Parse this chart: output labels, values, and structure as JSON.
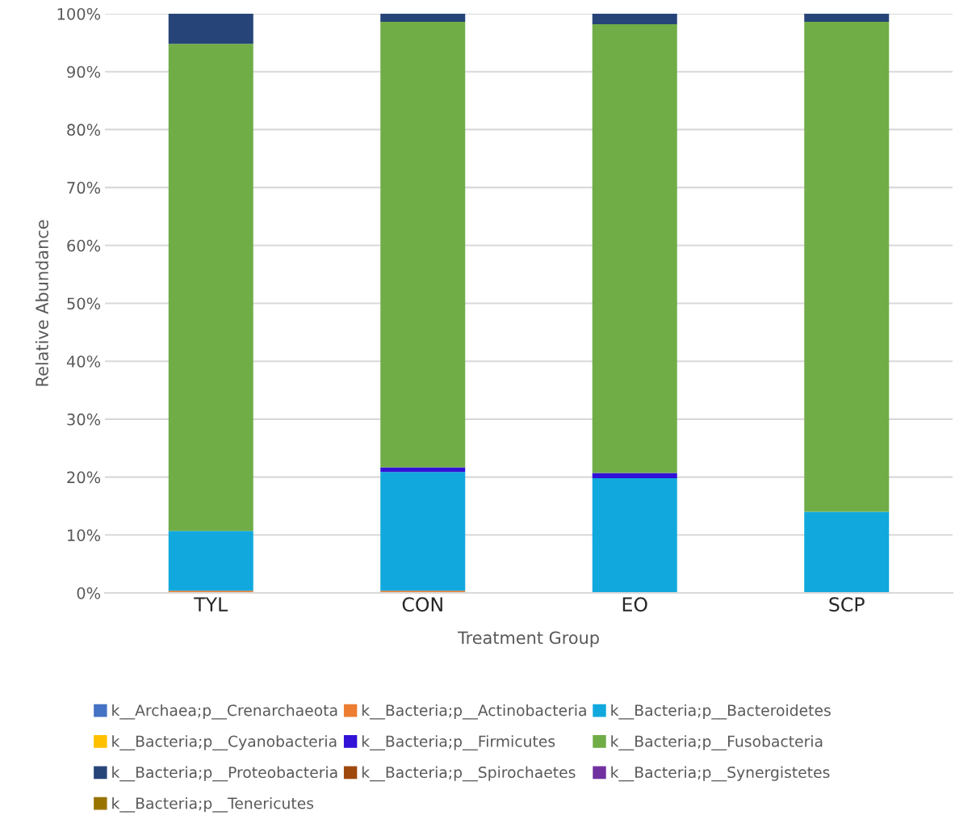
{
  "chart_data": {
    "type": "bar",
    "stacked": true,
    "xlabel": "Treatment Group",
    "ylabel": "Relative Abundance",
    "categories": [
      "TYL",
      "CON",
      "EO",
      "SCP"
    ],
    "series": [
      {
        "name": "k__Archaea;p__Crenarchaeota",
        "color": "#4472c4",
        "values": [
          0,
          0,
          0,
          0
        ]
      },
      {
        "name": "k__Bacteria;p__Actinobacteria",
        "color": "#ed7d31",
        "values": [
          0.4,
          0.4,
          0,
          0
        ]
      },
      {
        "name": "k__Bacteria;p__Bacteroidetes",
        "color": "#11a9dd",
        "values": [
          10.3,
          20.5,
          19.8,
          14.0
        ]
      },
      {
        "name": "k__Bacteria;p__Cyanobacteria",
        "color": "#ffc000",
        "values": [
          0,
          0,
          0,
          0
        ]
      },
      {
        "name": "k__Bacteria;p__Firmicutes",
        "color": "#3112d6",
        "values": [
          0,
          0.8,
          0.9,
          0
        ]
      },
      {
        "name": "k__Bacteria;p__Fusobacteria",
        "color": "#70ad47",
        "values": [
          84.1,
          76.9,
          77.5,
          84.6
        ]
      },
      {
        "name": "k__Bacteria;p__Proteobacteria",
        "color": "#264478",
        "values": [
          5.2,
          1.4,
          1.8,
          1.4
        ]
      },
      {
        "name": "k__Bacteria;p__Spirochaetes",
        "color": "#9e480e",
        "values": [
          0,
          0,
          0,
          0
        ]
      },
      {
        "name": "k__Bacteria;p__Synergistetes",
        "color": "#7030a0",
        "values": [
          0,
          0,
          0,
          0
        ]
      },
      {
        "name": "k__Bacteria;p__Tenericutes",
        "color": "#997300",
        "values": [
          0,
          0,
          0,
          0
        ]
      }
    ],
    "ylim": [
      0,
      100
    ],
    "yticks": [
      {
        "value": 0,
        "label": "0%"
      },
      {
        "value": 10,
        "label": "10%"
      },
      {
        "value": 20,
        "label": "20%"
      },
      {
        "value": 30,
        "label": "30%"
      },
      {
        "value": 40,
        "label": "40%"
      },
      {
        "value": 50,
        "label": "50%"
      },
      {
        "value": 60,
        "label": "60%"
      },
      {
        "value": 70,
        "label": "70%"
      },
      {
        "value": 80,
        "label": "80%"
      },
      {
        "value": 90,
        "label": "90%"
      },
      {
        "value": 100,
        "label": "100%"
      }
    ],
    "grid": "y",
    "legend": "bottom"
  }
}
